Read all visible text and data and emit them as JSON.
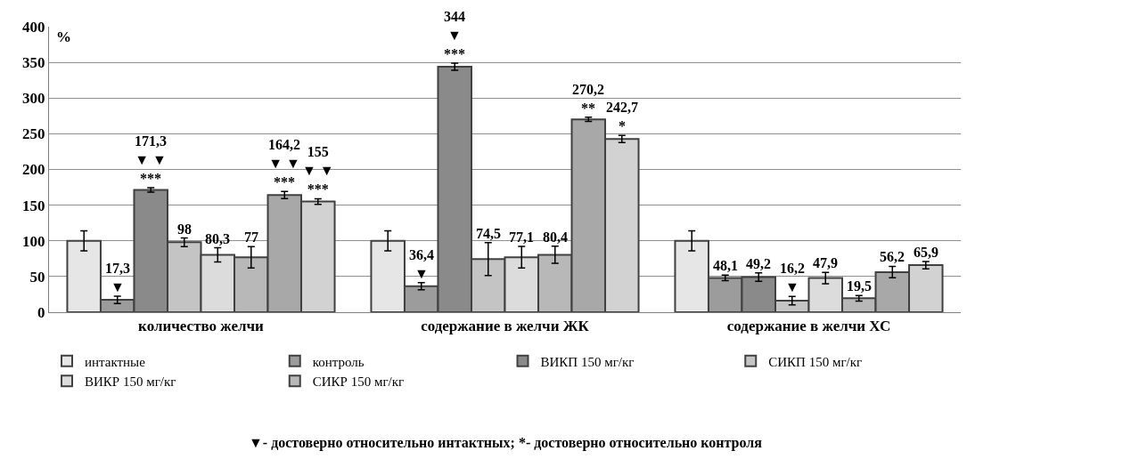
{
  "chart_data": {
    "type": "bar",
    "ylabel": "%",
    "categories": [
      "количество желчи",
      "содержание в желчи ЖК",
      "содержание в желчи ХС"
    ],
    "series": [
      {
        "name": "интактные",
        "color": "#e6e6e6",
        "values": [
          100,
          100,
          100
        ],
        "errors": [
          14,
          14,
          14
        ],
        "value_labels": [
          null,
          null,
          null
        ]
      },
      {
        "name": "контроль",
        "color": "#9c9c9c",
        "values": [
          17.3,
          36.4,
          48.1
        ],
        "errors": [
          5,
          5,
          4
        ],
        "value_labels": [
          "17,3\n▼",
          "36,4\n▼",
          "48,1"
        ]
      },
      {
        "name": "ВИКП 150 мг/кг",
        "color": "#8a8a8a",
        "values": [
          171.3,
          344,
          49.2
        ],
        "errors": [
          3,
          5,
          6
        ],
        "value_labels": [
          "171,3\n▼ ▼\n***",
          "344\n▼\n***",
          "49,2"
        ]
      },
      {
        "name": "СИКП 150 мг/кг",
        "color": "#c4c4c4",
        "values": [
          98,
          74.5,
          16.2
        ],
        "errors": [
          6,
          23,
          6
        ],
        "value_labels": [
          "98",
          "74,5",
          "16,2\n▼"
        ]
      },
      {
        "name": "ВИКР 150 мг/кг",
        "color": "#dcdcdc",
        "values": [
          80.3,
          77.1,
          47.9
        ],
        "errors": [
          10,
          15,
          8
        ],
        "value_labels": [
          "80,3",
          "77,1",
          "47,9"
        ]
      },
      {
        "name": "СИКР 150 мг/кг",
        "color": "#b8b8b8",
        "values": [
          77,
          80.4,
          19.5
        ],
        "errors": [
          15,
          12,
          4
        ],
        "value_labels": [
          "77",
          "80,4",
          "19,5"
        ]
      },
      {
        "color": "#a8a8a8",
        "values": [
          164.2,
          270.2,
          56.2
        ],
        "errors": [
          5,
          3,
          8
        ],
        "value_labels": [
          "164,2\n▼ ▼\n***",
          "270,2\n**",
          "56,2"
        ]
      },
      {
        "color": "#d2d2d2",
        "values": [
          155,
          242.7,
          65.9
        ],
        "errors": [
          4,
          5,
          5
        ],
        "value_labels": [
          "155\n▼ ▼\n***",
          "242,7\n*",
          "65,9"
        ]
      }
    ],
    "ylim": [
      0,
      400
    ],
    "yticks": [
      0,
      50,
      100,
      150,
      200,
      250,
      300,
      350,
      400
    ],
    "grid": "y",
    "legend": "bottom",
    "annotations": [
      "▼- достоверно относительно интактных; *- достоверно относительно контроля"
    ]
  }
}
